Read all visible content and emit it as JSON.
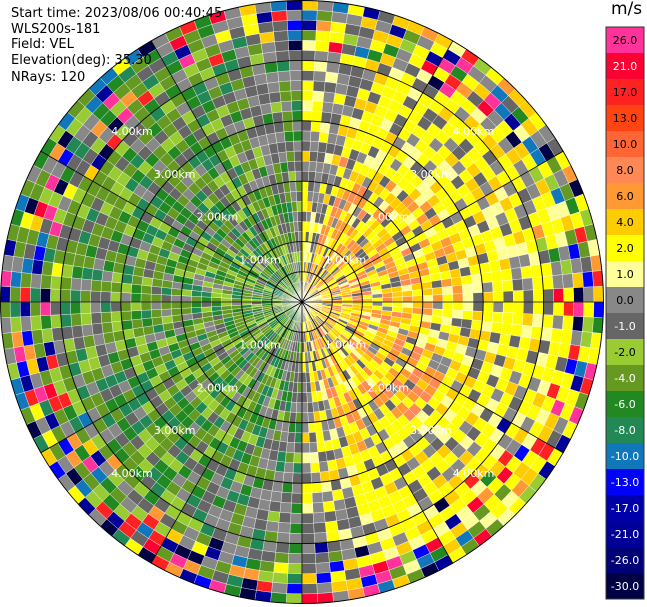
{
  "header": {
    "start_time": "Start time: 2023/08/06 00:40:45",
    "instrument": "WLS200s-181",
    "field": "Field: VEL",
    "elevation": "Elevation(deg): 35.30",
    "nrays": "NRays: 120"
  },
  "colorbar": {
    "unit": "m/s",
    "ticks": [
      "26.0",
      "21.0",
      "17.0",
      "13.0",
      "10.0",
      "8.0",
      "6.0",
      "4.0",
      "2.0",
      "1.0",
      "0.0",
      "-1.0",
      "-2.0",
      "-4.0",
      "-6.0",
      "-8.0",
      "-10.0",
      "-13.0",
      "-17.0",
      "-21.0",
      "-26.0",
      "-30.0"
    ],
    "colors": [
      "#ff3399",
      "#ff0033",
      "#ff2222",
      "#ff4411",
      "#ff6633",
      "#ff8855",
      "#ff9933",
      "#ffcc00",
      "#ffff00",
      "#ffff99",
      "#888888",
      "#666666",
      "#99cc33",
      "#669922",
      "#228822",
      "#228855",
      "#1177bb",
      "#0000ff",
      "#0000aa",
      "#000099",
      "#000077",
      "#000044"
    ]
  },
  "chart_data": {
    "type": "ppi",
    "title": "",
    "field": "VEL",
    "units": "m/s",
    "n_rays": 120,
    "elevation_deg": 35.3,
    "range_ring_labels": [
      "1.00km",
      "2.00km",
      "3.00km",
      "4.00km"
    ],
    "range_rings_km": [
      1.0,
      2.0,
      3.0,
      4.0
    ],
    "max_range_km": 5.0,
    "velocity_pattern": "negative (green) toward west, positive (yellow/orange) toward east, noisy multicolor at far ranges"
  }
}
